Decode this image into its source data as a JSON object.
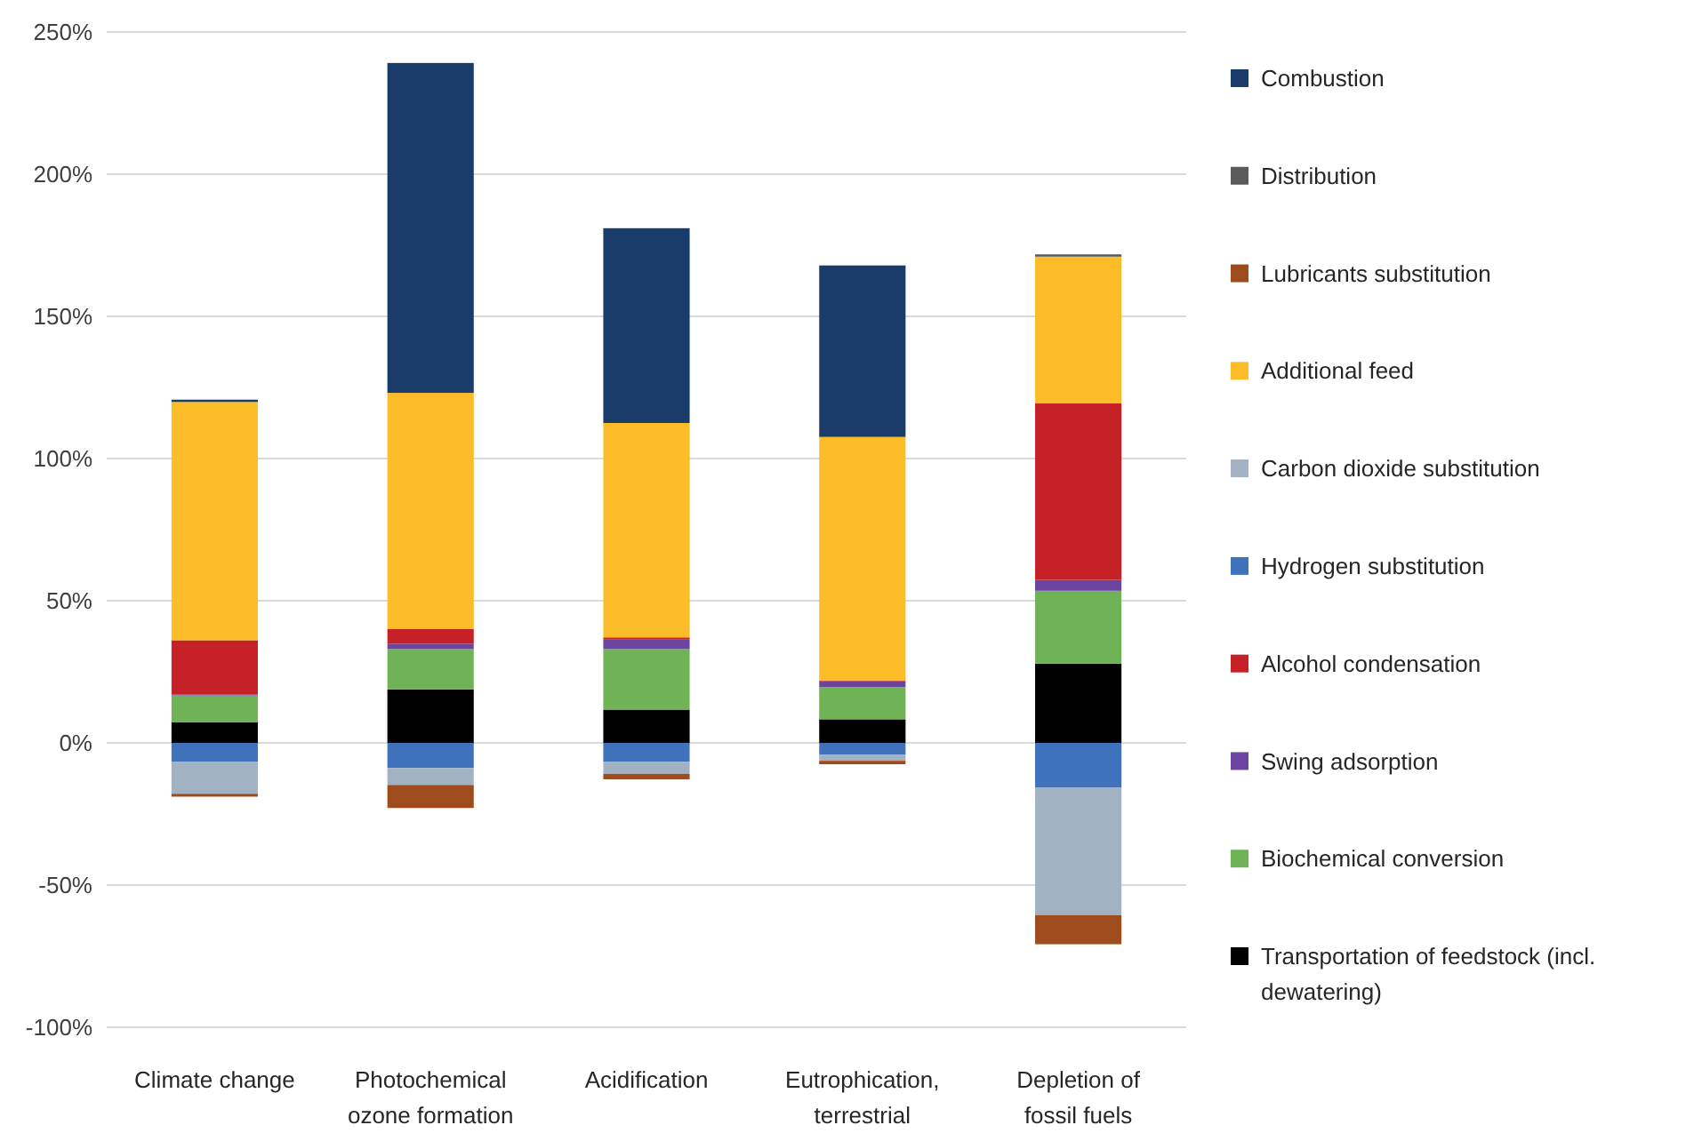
{
  "chart_data": {
    "type": "bar",
    "stacked": true,
    "categories": [
      "Climate change",
      "Photochemical ozone formation",
      "Acidification",
      "Eutrophication, terrestrial",
      "Depletion of fossil fuels"
    ],
    "series": [
      {
        "name": "Transportation of feedstock (incl. dewatering)",
        "color": "#000000",
        "values": [
          7.3,
          18.8,
          11.7,
          8.3,
          27.9
        ]
      },
      {
        "name": "Biochemical conversion",
        "color": "#6fb356",
        "values": [
          9.4,
          14.2,
          21.3,
          11.3,
          25.6
        ]
      },
      {
        "name": "Swing adsorption",
        "color": "#6a44a0",
        "values": [
          0.4,
          1.9,
          3.5,
          2.1,
          3.8
        ]
      },
      {
        "name": "Alcohol condensation",
        "color": "#c52127",
        "values": [
          19,
          5.2,
          0.6,
          0.3,
          62.1
        ]
      },
      {
        "name": "Hydrogen substitution",
        "color": "#3f72bb",
        "values": [
          -6.7,
          -8.8,
          -6.7,
          -4.2,
          -15.8
        ]
      },
      {
        "name": "Carbon dioxide substitution",
        "color": "#a2b2c2",
        "values": [
          -11.2,
          -6,
          -4.2,
          -2.1,
          -44.8
        ]
      },
      {
        "name": "Additional feed",
        "color": "#fdbd28",
        "values": [
          83.8,
          83,
          75.4,
          85.6,
          51.6
        ]
      },
      {
        "name": "Lubricants substitution",
        "color": "#9e4b1e",
        "values": [
          -1,
          -8.1,
          -1.9,
          -1.2,
          -10.2
        ]
      },
      {
        "name": "Distribution",
        "color": "#5a5a5a",
        "values": [
          0,
          0,
          0,
          0,
          0.8
        ]
      },
      {
        "name": "Combustion",
        "color": "#1a3c6a",
        "values": [
          0.8,
          116,
          68.5,
          60.3,
          0
        ]
      }
    ],
    "ylim": [
      -100,
      250
    ],
    "yticks": [
      {
        "value": -100,
        "label": "-100%"
      },
      {
        "value": -50,
        "label": "-50%"
      },
      {
        "value": 0,
        "label": "0%"
      },
      {
        "value": 50,
        "label": "50%"
      },
      {
        "value": 100,
        "label": "100%"
      },
      {
        "value": 150,
        "label": "150%"
      },
      {
        "value": 200,
        "label": "200%"
      },
      {
        "value": 250,
        "label": "250%"
      }
    ],
    "grid": "y",
    "legend": "right"
  }
}
